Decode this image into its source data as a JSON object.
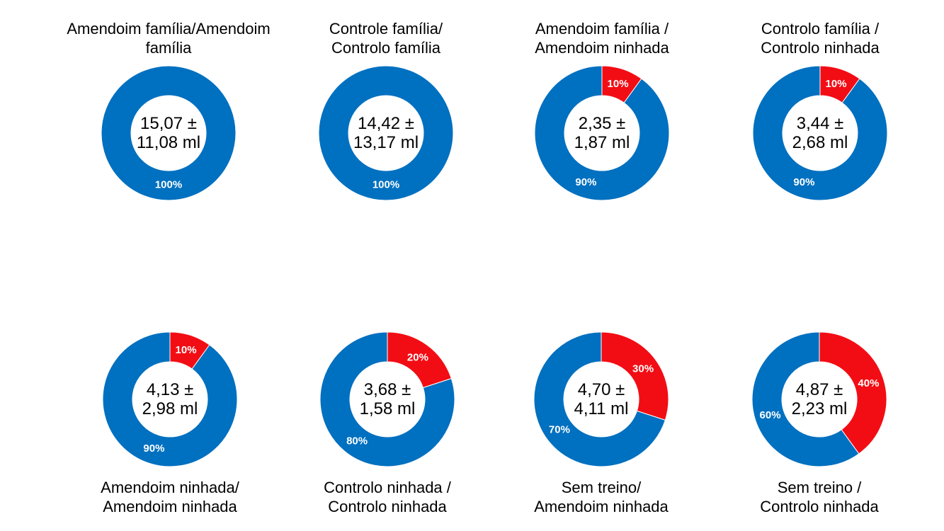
{
  "colors": {
    "blue": "#0070c0",
    "red": "#f20d14",
    "slice_label": "#ffffff",
    "center_text": "#000000",
    "title_text": "#000000",
    "background": "#ffffff"
  },
  "chart_data": [
    {
      "type": "donut",
      "title": "Amendoim família/Amendoim\nfamília",
      "title_position": "top",
      "center_label": "15,07 ±\n11,08 ml",
      "slices": [
        {
          "series": "blue",
          "pct": 100,
          "label": "100%"
        }
      ]
    },
    {
      "type": "donut",
      "title": "Controle família/\nControlo família",
      "title_position": "top",
      "center_label": "14,42 ±\n13,17 ml",
      "slices": [
        {
          "series": "blue",
          "pct": 100,
          "label": "100%"
        }
      ]
    },
    {
      "type": "donut",
      "title": "Amendoim família /\nAmendoim ninhada",
      "title_position": "top",
      "center_label": "2,35 ±\n1,87 ml",
      "slices": [
        {
          "series": "red",
          "pct": 10,
          "label": "10%"
        },
        {
          "series": "blue",
          "pct": 90,
          "label": "90%"
        }
      ]
    },
    {
      "type": "donut",
      "title": "Controlo família /\nControlo ninhada",
      "title_position": "top",
      "center_label": "3,44 ±\n2,68 ml",
      "slices": [
        {
          "series": "red",
          "pct": 10,
          "label": "10%"
        },
        {
          "series": "blue",
          "pct": 90,
          "label": "90%"
        }
      ]
    },
    {
      "type": "donut",
      "title": "Amendoim ninhada/\nAmendoim ninhada",
      "title_position": "bottom",
      "center_label": "4,13 ±\n2,98 ml",
      "slices": [
        {
          "series": "red",
          "pct": 10,
          "label": "10%"
        },
        {
          "series": "blue",
          "pct": 90,
          "label": "90%"
        }
      ]
    },
    {
      "type": "donut",
      "title": "Controlo ninhada /\nControlo ninhada",
      "title_position": "bottom",
      "center_label": "3,68 ±\n1,58 ml",
      "slices": [
        {
          "series": "red",
          "pct": 20,
          "label": "20%"
        },
        {
          "series": "blue",
          "pct": 80,
          "label": "80%"
        }
      ]
    },
    {
      "type": "donut",
      "title": "Sem treino/\nAmendoim ninhada",
      "title_position": "bottom",
      "center_label": "4,70 ±\n4,11 ml",
      "slices": [
        {
          "series": "red",
          "pct": 30,
          "label": "30%"
        },
        {
          "series": "blue",
          "pct": 70,
          "label": "70%"
        }
      ]
    },
    {
      "type": "donut",
      "title": "Sem treino /\nControlo ninhada",
      "title_position": "bottom",
      "center_label": "4,87 ±\n2,23 ml",
      "slices": [
        {
          "series": "red",
          "pct": 40,
          "label": "40%"
        },
        {
          "series": "blue",
          "pct": 60,
          "label": "60%"
        }
      ]
    }
  ]
}
